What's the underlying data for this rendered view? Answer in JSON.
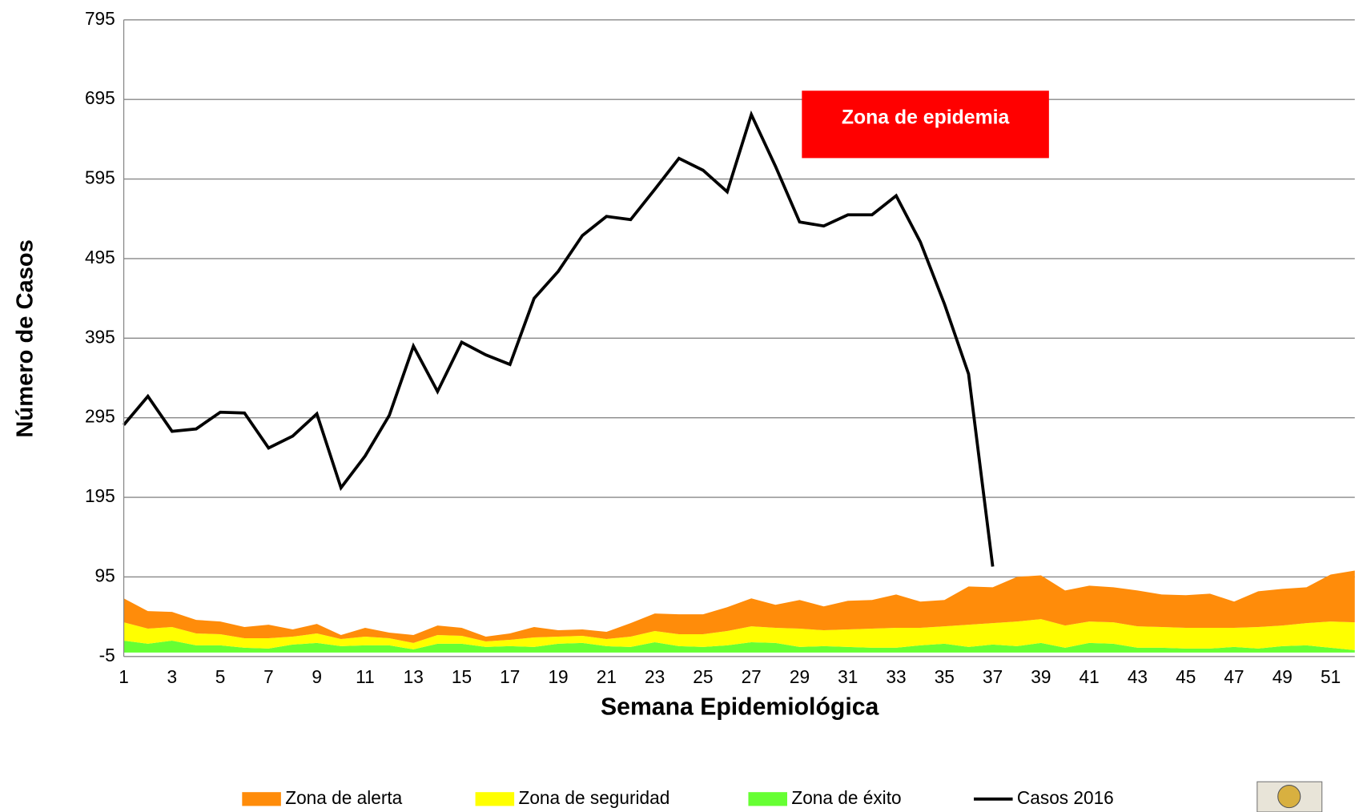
{
  "chart_data": {
    "type": "area",
    "x_label": "Semana Epidemiológica",
    "y_label": "Número de Casos",
    "annotation": "Zona de epidemia",
    "categories": [
      1,
      null,
      3,
      null,
      5,
      null,
      7,
      null,
      9,
      null,
      11,
      null,
      13,
      null,
      15,
      null,
      17,
      null,
      19,
      null,
      21,
      null,
      23,
      null,
      25,
      null,
      27,
      null,
      29,
      null,
      31,
      null,
      33,
      null,
      35,
      null,
      37,
      null,
      39,
      null,
      41,
      null,
      43,
      null,
      45,
      null,
      47,
      null,
      49,
      null,
      51,
      null
    ],
    "ylim": [
      -5,
      795
    ],
    "yticks": [
      -5,
      95,
      195,
      295,
      395,
      495,
      595,
      695,
      795
    ],
    "grid": true,
    "legend": "bottom",
    "series": [
      {
        "name": "Zona de alerta",
        "type": "area",
        "color": "#ff8c0a",
        "values": [
          30,
          22,
          19,
          17,
          16,
          14,
          17,
          9,
          12,
          5,
          11,
          7,
          10,
          12,
          10,
          6,
          8,
          13,
          8,
          8,
          9,
          17,
          22,
          25,
          25,
          30,
          35,
          29,
          36,
          30,
          36,
          36,
          42,
          33,
          33,
          48,
          45,
          56,
          55,
          44,
          45,
          44,
          45,
          41,
          41,
          43,
          33,
          45,
          46,
          45,
          59,
          65
        ]
      },
      {
        "name": "Zona de seguridad",
        "type": "area",
        "color": "#ffff00",
        "values": [
          23,
          19,
          17,
          15,
          14,
          12,
          13,
          10,
          12,
          9,
          11,
          9,
          8,
          11,
          10,
          7,
          8,
          12,
          9,
          9,
          9,
          13,
          14,
          15,
          16,
          18,
          20,
          19,
          23,
          20,
          22,
          24,
          25,
          22,
          22,
          28,
          27,
          31,
          30,
          28,
          27,
          27,
          27,
          26,
          26,
          26,
          24,
          27,
          26,
          28,
          33,
          35
        ]
      },
      {
        "name": "Zona de éxito",
        "type": "area",
        "color": "#66ff33",
        "values": [
          15,
          11,
          15,
          9,
          9,
          6,
          5,
          10,
          12,
          8,
          9,
          9,
          4,
          11,
          11,
          7,
          8,
          7,
          11,
          12,
          8,
          7,
          13,
          8,
          7,
          9,
          13,
          12,
          7,
          8,
          7,
          6,
          6,
          9,
          11,
          7,
          10,
          8,
          12,
          6,
          12,
          11,
          6,
          6,
          5,
          5,
          7,
          5,
          8,
          9,
          6,
          3
        ]
      },
      {
        "name": "Casos 2016",
        "type": "line",
        "color": "#000000",
        "values": [
          286,
          322,
          278,
          281,
          302,
          301,
          257,
          272,
          300,
          207,
          247,
          298,
          385,
          328,
          390,
          374,
          362,
          445,
          479,
          524,
          548,
          544,
          582,
          621,
          606,
          579,
          676,
          611,
          541,
          536,
          550,
          550,
          574,
          516,
          438,
          350,
          108,
          null,
          null,
          null,
          null,
          null,
          null,
          null,
          null,
          null,
          null,
          null,
          null,
          null,
          null,
          null
        ]
      }
    ]
  }
}
